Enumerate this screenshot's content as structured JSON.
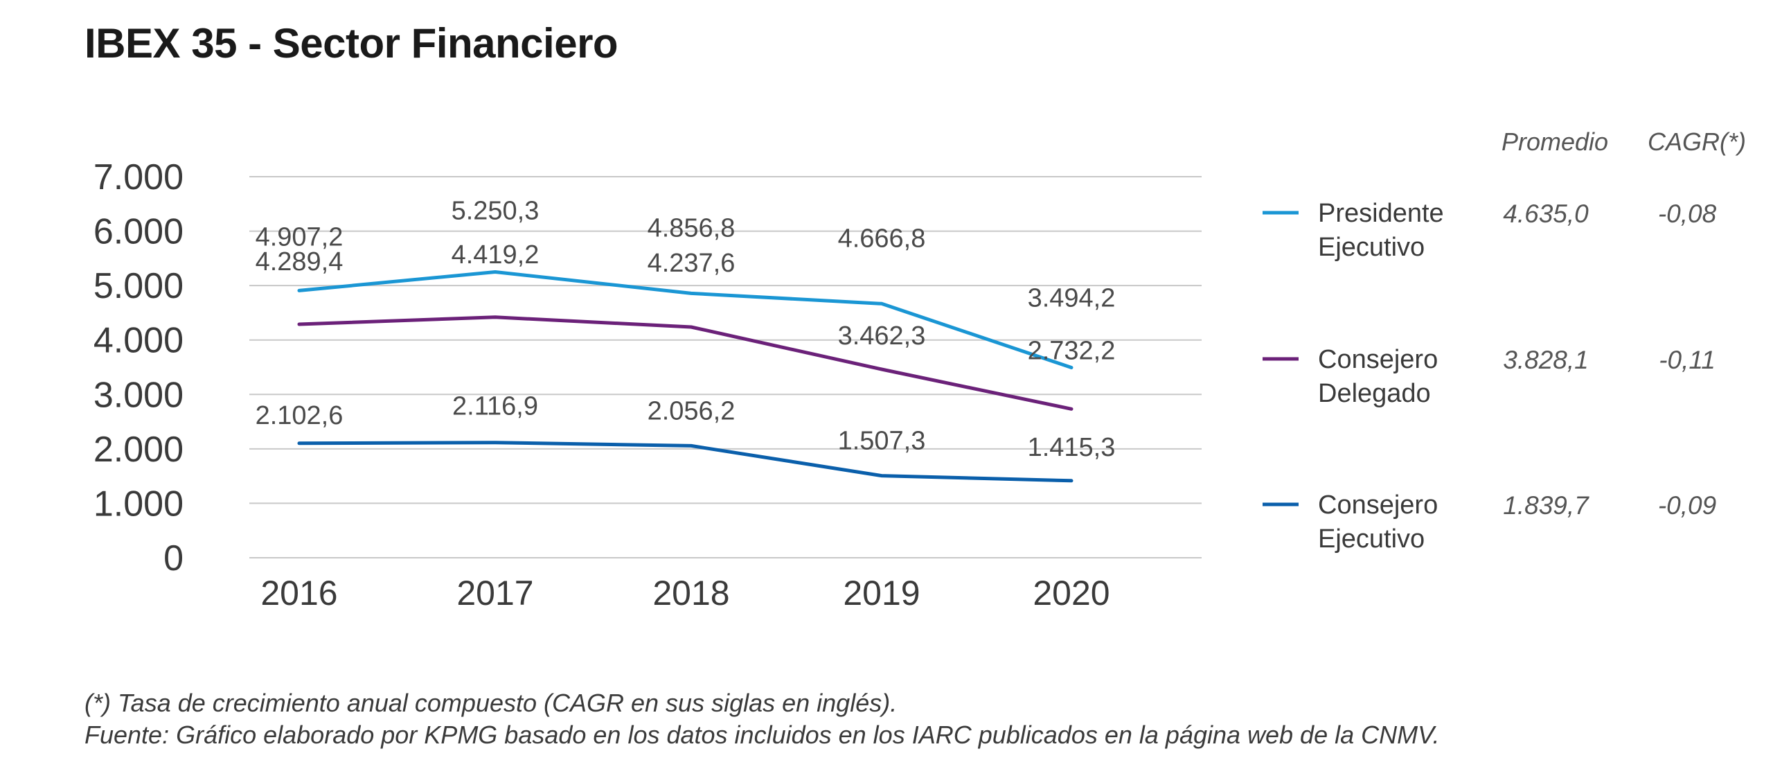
{
  "chart_data": {
    "type": "line",
    "title": "IBEX 35 - Sector Financiero",
    "x": [
      "2016",
      "2017",
      "2018",
      "2019",
      "2020"
    ],
    "ylim": [
      0,
      7000
    ],
    "yticks": [
      0,
      1000,
      2000,
      3000,
      4000,
      5000,
      6000,
      7000
    ],
    "ytick_labels": [
      "0",
      "1.000",
      "2.000",
      "3.000",
      "4.000",
      "5.000",
      "6.000",
      "7.000"
    ],
    "grid": true,
    "legend_position": "right",
    "stat_headers": {
      "avg": "Promedio",
      "cagr": "CAGR(*)"
    },
    "series": [
      {
        "name_lines": [
          "Presidente",
          "Ejecutivo"
        ],
        "color": "#1a96d4",
        "values": [
          4907.2,
          5250.3,
          4856.8,
          4666.8,
          3494.2
        ],
        "labels": [
          "4.907,2",
          "5.250,3",
          "4.856,8",
          "4.666,8",
          "3.494,2"
        ],
        "average": "4.635,0",
        "cagr": "-0,08"
      },
      {
        "name_lines": [
          "Consejero",
          "Delegado"
        ],
        "color": "#6b2179",
        "values": [
          4289.4,
          4419.2,
          4237.6,
          3462.3,
          2732.2
        ],
        "labels": [
          "4.289,4",
          "4.419,2",
          "4.237,6",
          "3.462,3",
          "2.732,2"
        ],
        "average": "3.828,1",
        "cagr": "-0,11"
      },
      {
        "name_lines": [
          "Consejero",
          "Ejecutivo"
        ],
        "color": "#0a5fab",
        "values": [
          2102.6,
          2116.9,
          2056.2,
          1507.3,
          1415.3
        ],
        "labels": [
          "2.102,6",
          "2.116,9",
          "2.056,2",
          "1.507,3",
          "1.415,3"
        ],
        "average": "1.839,7",
        "cagr": "-0,09"
      }
    ]
  },
  "footnotes": {
    "cagr_note": "(*) Tasa de crecimiento anual compuesto (CAGR en sus siglas en inglés).",
    "source": "Fuente: Gráfico elaborado por KPMG basado en los datos incluidos en los IARC publicados en la página web de la CNMV."
  }
}
